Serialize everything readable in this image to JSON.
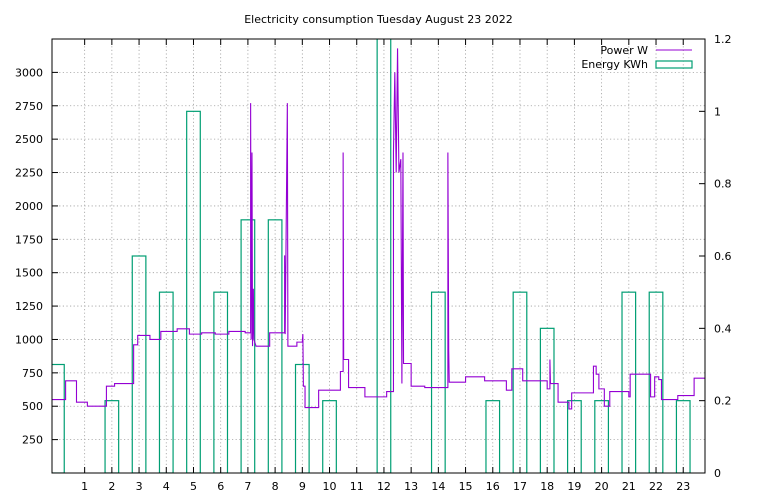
{
  "chart_data": {
    "type": "line",
    "title": "Electricity consumption Tuesday August 23 2022",
    "x_ticks": [
      1,
      2,
      3,
      4,
      5,
      6,
      7,
      8,
      9,
      10,
      11,
      12,
      13,
      14,
      15,
      16,
      17,
      18,
      19,
      20,
      21,
      22,
      23
    ],
    "xlim": [
      -0.2,
      23.8
    ],
    "y_left": {
      "ticks": [
        250,
        500,
        750,
        1000,
        1250,
        1500,
        1750,
        2000,
        2250,
        2500,
        2750,
        3000
      ],
      "lim": [
        0,
        3250
      ]
    },
    "y_right": {
      "ticks": [
        "0",
        "0.2",
        "0.4",
        "0.6",
        "0.8",
        "1",
        "1.2"
      ],
      "lim": [
        0,
        1.2
      ]
    },
    "grid": true,
    "legend_position": "top-right",
    "colors": {
      "power": "#9400d3",
      "energy": "#009e73"
    },
    "series": [
      {
        "name": "Power W",
        "axis": "left",
        "style": "steps",
        "points": [
          [
            -0.2,
            550
          ],
          [
            0.3,
            550
          ],
          [
            0.3,
            690
          ],
          [
            0.7,
            690
          ],
          [
            0.7,
            530
          ],
          [
            1.1,
            530
          ],
          [
            1.1,
            500
          ],
          [
            1.8,
            500
          ],
          [
            1.8,
            650
          ],
          [
            2.1,
            650
          ],
          [
            2.1,
            670
          ],
          [
            2.8,
            670
          ],
          [
            2.8,
            960
          ],
          [
            2.95,
            960
          ],
          [
            2.95,
            1030
          ],
          [
            3.4,
            1030
          ],
          [
            3.4,
            1000
          ],
          [
            3.8,
            1000
          ],
          [
            3.8,
            1060
          ],
          [
            4.4,
            1060
          ],
          [
            4.4,
            1080
          ],
          [
            4.85,
            1080
          ],
          [
            4.85,
            1040
          ],
          [
            5.3,
            1040
          ],
          [
            5.3,
            1050
          ],
          [
            5.8,
            1050
          ],
          [
            5.8,
            1040
          ],
          [
            6.3,
            1040
          ],
          [
            6.3,
            1060
          ],
          [
            6.9,
            1060
          ],
          [
            6.9,
            1050
          ],
          [
            7.1,
            1050
          ],
          [
            7.1,
            2770
          ],
          [
            7.12,
            1000
          ],
          [
            7.15,
            2400
          ],
          [
            7.17,
            950
          ],
          [
            7.2,
            1380
          ],
          [
            7.22,
            1000
          ],
          [
            7.3,
            950
          ],
          [
            7.8,
            950
          ],
          [
            7.8,
            1050
          ],
          [
            8.35,
            1050
          ],
          [
            8.35,
            1630
          ],
          [
            8.37,
            1040
          ],
          [
            8.45,
            2770
          ],
          [
            8.47,
            950
          ],
          [
            8.8,
            950
          ],
          [
            8.8,
            980
          ],
          [
            9.0,
            980
          ],
          [
            9.02,
            1040
          ],
          [
            9.04,
            650
          ],
          [
            9.1,
            650
          ],
          [
            9.1,
            490
          ],
          [
            9.6,
            490
          ],
          [
            9.6,
            620
          ],
          [
            10.4,
            620
          ],
          [
            10.4,
            760
          ],
          [
            10.5,
            760
          ],
          [
            10.5,
            2400
          ],
          [
            10.52,
            850
          ],
          [
            10.7,
            850
          ],
          [
            10.7,
            640
          ],
          [
            11.3,
            640
          ],
          [
            11.3,
            570
          ],
          [
            12.1,
            570
          ],
          [
            12.1,
            610
          ],
          [
            12.35,
            610
          ],
          [
            12.35,
            2400
          ],
          [
            12.4,
            3000
          ],
          [
            12.45,
            2250
          ],
          [
            12.5,
            3180
          ],
          [
            12.55,
            2250
          ],
          [
            12.62,
            2350
          ],
          [
            12.66,
            670
          ],
          [
            12.7,
            2400
          ],
          [
            12.72,
            820
          ],
          [
            13.0,
            820
          ],
          [
            13.0,
            650
          ],
          [
            13.5,
            650
          ],
          [
            13.5,
            640
          ],
          [
            14.35,
            640
          ],
          [
            14.35,
            2400
          ],
          [
            14.38,
            920
          ],
          [
            14.4,
            680
          ],
          [
            15.0,
            680
          ],
          [
            15.0,
            720
          ],
          [
            15.7,
            720
          ],
          [
            15.7,
            690
          ],
          [
            16.5,
            690
          ],
          [
            16.5,
            620
          ],
          [
            16.7,
            620
          ],
          [
            16.7,
            780
          ],
          [
            17.1,
            780
          ],
          [
            17.1,
            690
          ],
          [
            18.0,
            690
          ],
          [
            18.0,
            630
          ],
          [
            18.1,
            630
          ],
          [
            18.1,
            850
          ],
          [
            18.12,
            670
          ],
          [
            18.4,
            670
          ],
          [
            18.4,
            530
          ],
          [
            18.8,
            530
          ],
          [
            18.8,
            480
          ],
          [
            18.9,
            480
          ],
          [
            18.9,
            600
          ],
          [
            19.7,
            600
          ],
          [
            19.7,
            800
          ],
          [
            19.8,
            800
          ],
          [
            19.8,
            740
          ],
          [
            19.9,
            740
          ],
          [
            19.9,
            630
          ],
          [
            20.1,
            630
          ],
          [
            20.1,
            500
          ],
          [
            20.3,
            500
          ],
          [
            20.3,
            610
          ],
          [
            21.0,
            610
          ],
          [
            21.0,
            570
          ],
          [
            21.05,
            570
          ],
          [
            21.05,
            740
          ],
          [
            21.8,
            740
          ],
          [
            21.8,
            570
          ],
          [
            21.95,
            570
          ],
          [
            21.95,
            720
          ],
          [
            22.1,
            720
          ],
          [
            22.1,
            700
          ],
          [
            22.2,
            700
          ],
          [
            22.2,
            550
          ],
          [
            22.8,
            550
          ],
          [
            22.8,
            580
          ],
          [
            23.4,
            580
          ],
          [
            23.4,
            710
          ],
          [
            23.8,
            710
          ]
        ]
      },
      {
        "name": "Energy KWh",
        "axis": "right",
        "style": "boxes",
        "bars": [
          [
            0,
            0.3
          ],
          [
            1,
            0
          ],
          [
            2,
            0.2
          ],
          [
            3,
            0.6
          ],
          [
            4,
            0.5
          ],
          [
            5,
            1.0
          ],
          [
            6,
            0.5
          ],
          [
            7,
            0.7
          ],
          [
            8,
            0.7
          ],
          [
            9,
            0.3
          ],
          [
            10,
            0.2
          ],
          [
            11,
            0
          ],
          [
            12,
            1.22
          ],
          [
            13,
            0
          ],
          [
            14,
            0.5
          ],
          [
            15,
            0
          ],
          [
            16,
            0.2
          ],
          [
            17,
            0.5
          ],
          [
            18,
            0.4
          ],
          [
            19,
            0.2
          ],
          [
            20,
            0.2
          ],
          [
            21,
            0.5
          ],
          [
            22,
            0.5
          ],
          [
            23,
            0.2
          ]
        ]
      }
    ]
  }
}
